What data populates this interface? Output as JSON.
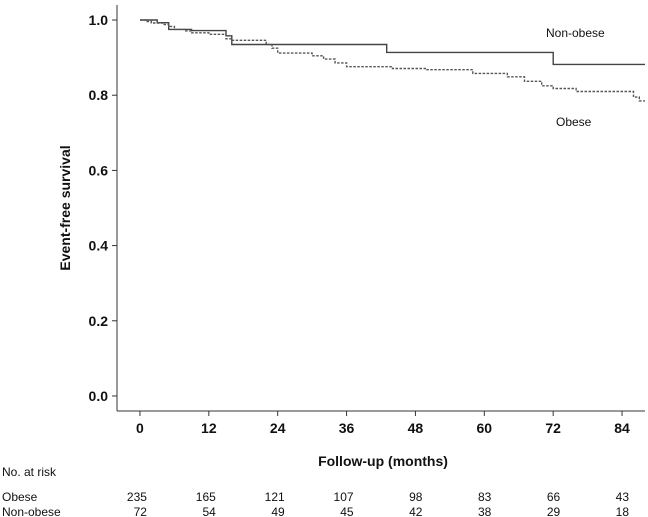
{
  "chart_data": {
    "type": "line",
    "title": "",
    "xlabel": "Follow-up (months)",
    "ylabel": "Event-free survival",
    "xlim": [
      -4,
      88
    ],
    "ylim": [
      -0.04,
      1.04
    ],
    "xticks": [
      0,
      12,
      24,
      36,
      48,
      60,
      72,
      84
    ],
    "yticks": [
      "0.0",
      "0.2",
      "0.4",
      "0.6",
      "0.8",
      "1.0"
    ],
    "grid": false,
    "series": [
      {
        "name": "Non-obese",
        "line_style": "solid",
        "color": "#444444",
        "points": [
          [
            0,
            1.0
          ],
          [
            3,
            1.0
          ],
          [
            3,
            0.993
          ],
          [
            5,
            0.993
          ],
          [
            5,
            0.975
          ],
          [
            9,
            0.975
          ],
          [
            9,
            0.972
          ],
          [
            15,
            0.972
          ],
          [
            15,
            0.958
          ],
          [
            16,
            0.958
          ],
          [
            16,
            0.935
          ],
          [
            24,
            0.935
          ],
          [
            24,
            0.935
          ],
          [
            43,
            0.935
          ],
          [
            43,
            0.914
          ],
          [
            72,
            0.914
          ],
          [
            72,
            0.882
          ],
          [
            88,
            0.882
          ]
        ]
      },
      {
        "name": "Obese",
        "line_style": "dashed",
        "color": "#555555",
        "points": [
          [
            0,
            1.0
          ],
          [
            1,
            1.0
          ],
          [
            1,
            0.996
          ],
          [
            2,
            0.996
          ],
          [
            2,
            0.992
          ],
          [
            4,
            0.992
          ],
          [
            4,
            0.988
          ],
          [
            5,
            0.988
          ],
          [
            5,
            0.983
          ],
          [
            6,
            0.983
          ],
          [
            6,
            0.975
          ],
          [
            8,
            0.975
          ],
          [
            8,
            0.971
          ],
          [
            9,
            0.971
          ],
          [
            9,
            0.966
          ],
          [
            12,
            0.966
          ],
          [
            12,
            0.962
          ],
          [
            15,
            0.962
          ],
          [
            15,
            0.95
          ],
          [
            16,
            0.95
          ],
          [
            16,
            0.946
          ],
          [
            22,
            0.946
          ],
          [
            22,
            0.935
          ],
          [
            23,
            0.935
          ],
          [
            23,
            0.925
          ],
          [
            24,
            0.925
          ],
          [
            24,
            0.912
          ],
          [
            30,
            0.912
          ],
          [
            30,
            0.905
          ],
          [
            32,
            0.905
          ],
          [
            32,
            0.896
          ],
          [
            34,
            0.896
          ],
          [
            34,
            0.886
          ],
          [
            36,
            0.886
          ],
          [
            36,
            0.876
          ],
          [
            44,
            0.876
          ],
          [
            44,
            0.871
          ],
          [
            50,
            0.871
          ],
          [
            50,
            0.868
          ],
          [
            58,
            0.868
          ],
          [
            58,
            0.858
          ],
          [
            64,
            0.858
          ],
          [
            64,
            0.849
          ],
          [
            67,
            0.849
          ],
          [
            67,
            0.837
          ],
          [
            70,
            0.837
          ],
          [
            70,
            0.825
          ],
          [
            72,
            0.825
          ],
          [
            72,
            0.818
          ],
          [
            76,
            0.818
          ],
          [
            76,
            0.81
          ],
          [
            86,
            0.81
          ],
          [
            86,
            0.795
          ],
          [
            87,
            0.795
          ],
          [
            87,
            0.785
          ],
          [
            88,
            0.785
          ]
        ]
      }
    ],
    "number_at_risk": {
      "title": "No. at risk",
      "times": [
        0,
        12,
        24,
        36,
        48,
        60,
        72,
        84
      ],
      "rows": [
        {
          "label": "Obese",
          "values": [
            "235",
            "165",
            "121",
            "107",
            "98",
            "83",
            "66",
            "43"
          ]
        },
        {
          "label": "Non-obese",
          "values": [
            "72",
            "54",
            "49",
            "45",
            "42",
            "38",
            "29",
            "18"
          ]
        }
      ]
    }
  }
}
